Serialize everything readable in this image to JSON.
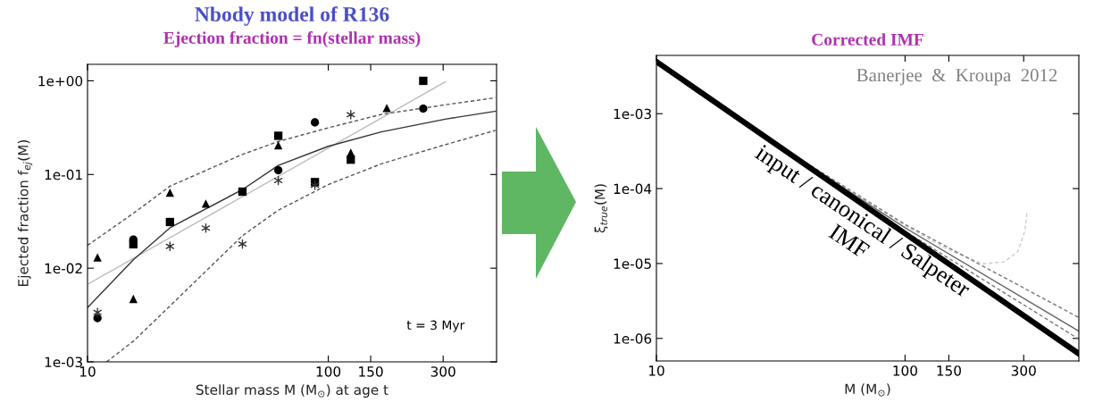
{
  "chart_data": [
    {
      "type": "scatter",
      "title": "Nbody model of R136",
      "subtitle": "Ejection fraction = fn(stellar mass)",
      "xlabel": "Stellar mass M (M$_{⊙}$) at age t",
      "ylabel": "Ejected fraction f$_{ej}$(M)",
      "annotations": [
        "t = 3 Myr"
      ],
      "log": "xy",
      "xlim": [
        10,
        500
      ],
      "ylim": [
        0.001,
        1.5
      ],
      "xticks": [
        10,
        100,
        150,
        300
      ],
      "yticks": [
        {
          "value": 1,
          "label": "1e+00"
        },
        {
          "value": 0.1,
          "label": "1e-01"
        },
        {
          "value": 0.01,
          "label": "1e-02"
        },
        {
          "value": 0.001,
          "label": "1e-03"
        }
      ],
      "series": [
        {
          "type": "line",
          "color": "#bbbbbb",
          "line_style": "solid",
          "x": [
            10,
            307
          ],
          "values": [
            0.00673,
            0.977
          ]
        },
        {
          "type": "line",
          "color": "#555555",
          "line_style": "dashed",
          "x": [
            10,
            15.5,
            22,
            44,
            62,
            100,
            166,
            306,
            495
          ],
          "values": [
            0.0175,
            0.0385,
            0.075,
            0.164,
            0.225,
            0.315,
            0.438,
            0.555,
            0.66
          ]
        },
        {
          "type": "line",
          "color": "#555555",
          "line_style": "dashed",
          "x": [
            12,
            15.5,
            22,
            44,
            62,
            100,
            166,
            306,
            495
          ],
          "values": [
            0.001,
            0.00166,
            0.00395,
            0.0222,
            0.0416,
            0.078,
            0.13,
            0.208,
            0.296
          ]
        },
        {
          "type": "line",
          "color": "#333333",
          "line_style": "solid",
          "x": [
            10,
            15.5,
            22,
            44,
            62,
            100,
            166,
            306,
            495
          ],
          "values": [
            0.0038,
            0.0123,
            0.027,
            0.069,
            0.125,
            0.2,
            0.285,
            0.39,
            0.474
          ]
        },
        {
          "type": "scatter",
          "color": "#000000",
          "marker": "triangle",
          "x": [
            11,
            15.5,
            22,
            31,
            62,
            124,
            175
          ],
          "values": [
            0.013,
            0.0047,
            0.064,
            0.049,
            0.205,
            0.171,
            0.513
          ]
        },
        {
          "type": "scatter",
          "color": "#000000",
          "marker": "square",
          "x": [
            15.5,
            22,
            44,
            62,
            88,
            124,
            248
          ],
          "values": [
            0.018,
            0.0311,
            0.0656,
            0.259,
            0.083,
            0.144,
            1.0
          ]
        },
        {
          "type": "scatter",
          "color": "#000000",
          "marker": "circle",
          "x": [
            11,
            15.5,
            62,
            88,
            248
          ],
          "values": [
            0.00293,
            0.0202,
            0.111,
            0.36,
            0.505
          ]
        },
        {
          "type": "scatter",
          "color": "#333333",
          "marker": "cross",
          "x": [
            11,
            22,
            31,
            44,
            62,
            88,
            124
          ],
          "values": [
            0.00337,
            0.0171,
            0.0268,
            0.0181,
            0.0863,
            0.0767,
            0.435
          ]
        }
      ]
    },
    {
      "type": "line",
      "title": "Corrected IMF",
      "xlabel": "M (M$_{⊙}$)",
      "ylabel": "ξ$_{true}$(M)",
      "annotations": [
        "Banerjee  &  Kroupa  2012",
        "input / canonical / Salpeter\nIMF"
      ],
      "log": "xy",
      "xlim": [
        10,
        500
      ],
      "ylim": [
        5e-07,
        0.006
      ],
      "xticks": [
        10,
        100,
        150,
        300
      ],
      "yticks": [
        {
          "value": 0.001,
          "label": "1e-03"
        },
        {
          "value": 0.0001,
          "label": "1e-04"
        },
        {
          "value": 1e-05,
          "label": "1e-05"
        },
        {
          "value": 1e-06,
          "label": "1e-06"
        }
      ],
      "series": [
        {
          "color": "#cccccc",
          "line_style": "dashed",
          "x": [
            10,
            30,
            100,
            150,
            206,
            250,
            284,
            303,
            310
          ],
          "values": [
            0.00495,
            0.00041,
            3.2e-05,
            1.51e-05,
            9.9e-06,
            1.05e-05,
            1.44e-05,
            2.7e-05,
            4.98e-05
          ]
        },
        {
          "color": "#777777",
          "line_style": "dashed",
          "x": [
            10,
            30,
            100,
            500
          ],
          "values": [
            0.00495,
            0.0004,
            3.33e-05,
            1.9e-06
          ]
        },
        {
          "color": "#777777",
          "line_style": "dashed",
          "x": [
            10,
            30,
            100,
            500
          ],
          "values": [
            0.00495,
            0.0004,
            2.7e-05,
            9.8e-07
          ]
        },
        {
          "color": "#666666",
          "line_style": "solid",
          "x": [
            10,
            30,
            100,
            500
          ],
          "values": [
            0.00495,
            0.0004,
            3e-05,
            1.25e-06
          ]
        },
        {
          "color": "#000000",
          "line_style": "solid",
          "x": [
            10,
            500
          ],
          "values": [
            0.00495,
            6.25e-07
          ]
        }
      ]
    }
  ]
}
